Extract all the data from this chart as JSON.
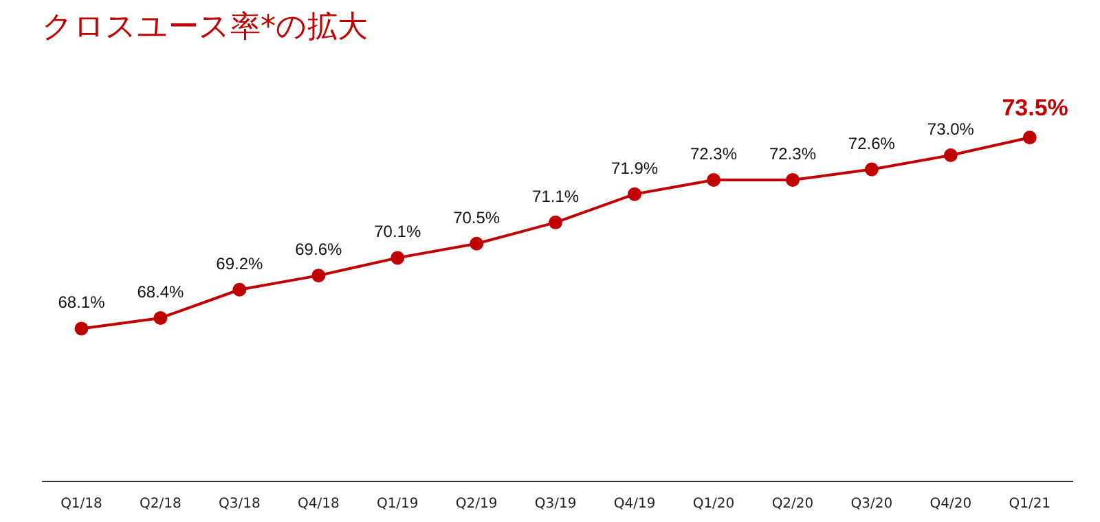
{
  "chart_data": {
    "type": "line",
    "title": "クロスユース率*の拡大",
    "categories": [
      "Q1/18",
      "Q2/18",
      "Q3/18",
      "Q4/18",
      "Q1/19",
      "Q2/19",
      "Q3/19",
      "Q4/19",
      "Q1/20",
      "Q2/20",
      "Q3/20",
      "Q4/20",
      "Q1/21"
    ],
    "series": [
      {
        "color": "#c00000",
        "values": [
          68.1,
          68.4,
          69.2,
          69.6,
          70.1,
          70.5,
          71.1,
          71.9,
          72.3,
          72.3,
          72.6,
          73.0,
          73.5
        ],
        "value_labels": [
          "68.1%",
          "68.4%",
          "69.2%",
          "69.6%",
          "70.1%",
          "70.5%",
          "71.1%",
          "71.9%",
          "72.3%",
          "72.3%",
          "72.6%",
          "73.0%",
          "73.5%"
        ]
      }
    ],
    "marker": "circle",
    "line_style": "solid",
    "grid": false
  }
}
